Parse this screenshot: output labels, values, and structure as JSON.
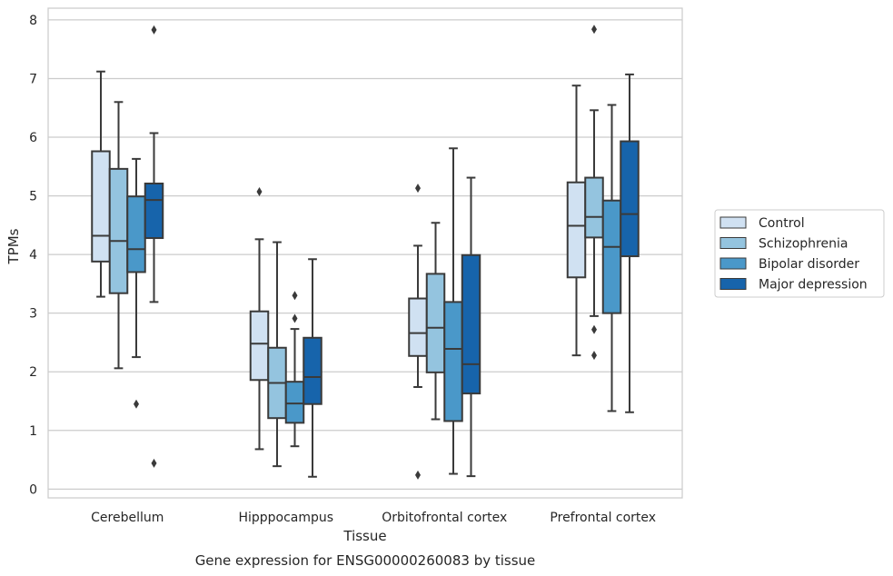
{
  "chart_data": {
    "type": "box",
    "xlabel": "Tissue",
    "ylabel": "TPMs",
    "caption": "Gene expression for ENSG00000260083 by tissue",
    "ylim": [
      -0.15,
      8.2
    ],
    "yticks": [
      0,
      1,
      2,
      3,
      4,
      5,
      6,
      7,
      8
    ],
    "grid": true,
    "legend_position": "right",
    "categories": [
      "Cerebellum",
      "Hipppocampus",
      "Orbitofrontal cortex",
      "Prefrontal cortex"
    ],
    "series": [
      {
        "name": "Control",
        "color": "#d0e1f2",
        "boxes": [
          {
            "whislo": 3.28,
            "q1": 3.88,
            "med": 4.32,
            "q3": 5.76,
            "whishi": 7.12,
            "fliers": []
          },
          {
            "whislo": 0.68,
            "q1": 1.86,
            "med": 2.48,
            "q3": 3.03,
            "whishi": 4.26,
            "fliers": [
              5.07
            ]
          },
          {
            "whislo": 1.74,
            "q1": 2.27,
            "med": 2.66,
            "q3": 3.25,
            "whishi": 4.15,
            "fliers": [
              5.13,
              0.24
            ]
          },
          {
            "whislo": 2.28,
            "q1": 3.61,
            "med": 4.49,
            "q3": 5.23,
            "whishi": 6.88,
            "fliers": []
          }
        ]
      },
      {
        "name": "Schizophrenia",
        "color": "#94c4df",
        "boxes": [
          {
            "whislo": 2.06,
            "q1": 3.34,
            "med": 4.23,
            "q3": 5.46,
            "whishi": 6.6,
            "fliers": []
          },
          {
            "whislo": 0.39,
            "q1": 1.21,
            "med": 1.81,
            "q3": 2.41,
            "whishi": 4.21,
            "fliers": []
          },
          {
            "whislo": 1.19,
            "q1": 1.99,
            "med": 2.75,
            "q3": 3.67,
            "whishi": 4.54,
            "fliers": []
          },
          {
            "whislo": 2.95,
            "q1": 4.29,
            "med": 4.64,
            "q3": 5.31,
            "whishi": 6.46,
            "fliers": [
              7.84,
              2.72,
              2.28
            ]
          }
        ]
      },
      {
        "name": "Bipolar disorder",
        "color": "#4a98c9",
        "boxes": [
          {
            "whislo": 2.25,
            "q1": 3.7,
            "med": 4.09,
            "q3": 4.99,
            "whishi": 5.63,
            "fliers": [
              1.45
            ]
          },
          {
            "whislo": 0.73,
            "q1": 1.13,
            "med": 1.46,
            "q3": 1.83,
            "whishi": 2.73,
            "fliers": [
              3.3,
              2.91
            ]
          },
          {
            "whislo": 0.26,
            "q1": 1.16,
            "med": 2.39,
            "q3": 3.19,
            "whishi": 5.81,
            "fliers": []
          },
          {
            "whislo": 1.33,
            "q1": 3.0,
            "med": 4.13,
            "q3": 4.92,
            "whishi": 6.55,
            "fliers": []
          }
        ]
      },
      {
        "name": "Major depression",
        "color": "#1764ab",
        "boxes": [
          {
            "whislo": 3.19,
            "q1": 4.28,
            "med": 4.93,
            "q3": 5.21,
            "whishi": 6.07,
            "fliers": [
              7.83,
              0.44
            ]
          },
          {
            "whislo": 0.21,
            "q1": 1.45,
            "med": 1.91,
            "q3": 2.58,
            "whishi": 3.92,
            "fliers": []
          },
          {
            "whislo": 0.22,
            "q1": 1.63,
            "med": 2.13,
            "q3": 3.99,
            "whishi": 5.31,
            "fliers": []
          },
          {
            "whislo": 1.31,
            "q1": 3.97,
            "med": 4.69,
            "q3": 5.93,
            "whishi": 7.07,
            "fliers": []
          }
        ]
      }
    ]
  }
}
